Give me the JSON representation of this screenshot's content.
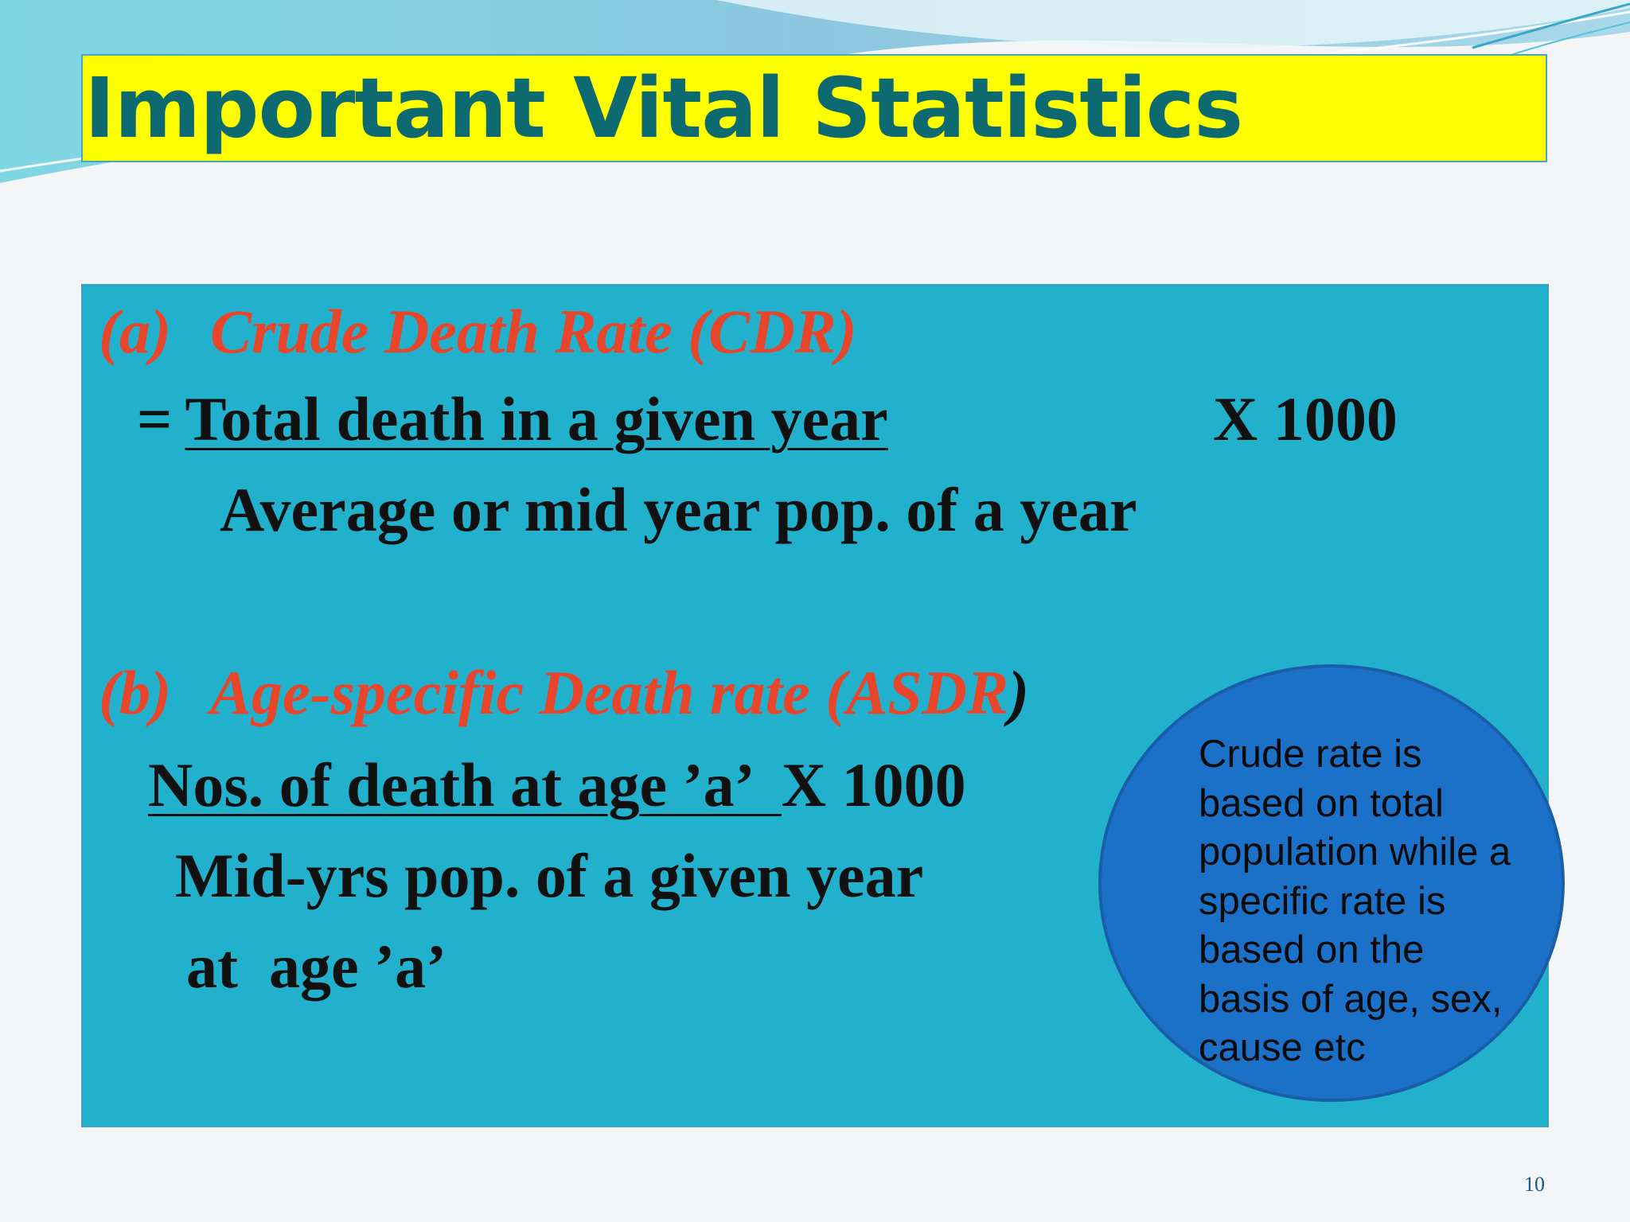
{
  "slide": {
    "title": "Important Vital Statistics",
    "page_number": "10"
  },
  "cdr": {
    "label": "(a)",
    "heading": "Crude Death Rate (CDR)",
    "equals": "=",
    "numerator": "Total death in a given year",
    "multiplier": "X 1000",
    "denominator": "Average or mid year pop. of a year"
  },
  "asdr": {
    "label": "(b)",
    "heading": "Age-specific Death rate (ASDR",
    "heading_close": ")",
    "numerator": "Nos. of death at age ’a’  ",
    "multiplier": "X 1000",
    "denominator_line1": "Mid-yrs pop. of a given year",
    "denominator_line2": "at  age ’a’"
  },
  "callout": {
    "text": "Crude rate is based on total population while a specific rate is based on the basis of age, sex, cause etc"
  },
  "colors": {
    "title_background": "#ffff00",
    "title_text": "#0d6a70",
    "content_background": "#22b1cc",
    "heading_text": "#e8452a",
    "callout_fill": "#1b70c8"
  }
}
